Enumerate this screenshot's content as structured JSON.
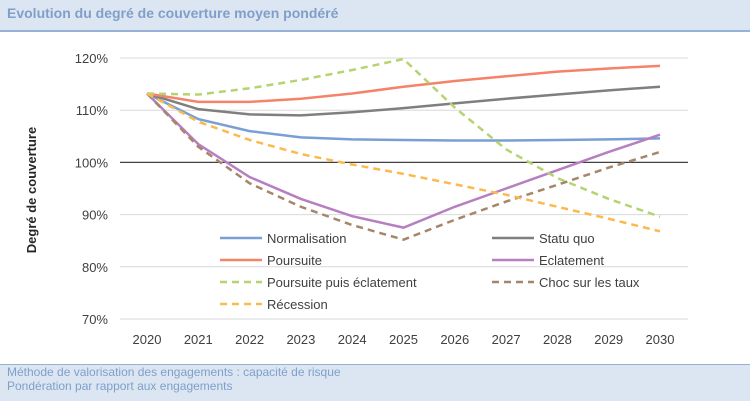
{
  "header": {
    "title": "Evolution du degré de couverture moyen pondéré"
  },
  "footer": {
    "line1": "Méthode de valorisation des engagements : capacité de risque",
    "line2": "Pondération par rapport aux engagements"
  },
  "chart_data": {
    "type": "line",
    "title": "",
    "xlabel": "",
    "ylabel": "Degré de couverture",
    "ylim": [
      70,
      120
    ],
    "yticks": [
      "70%",
      "80%",
      "90%",
      "100%",
      "110%",
      "120%"
    ],
    "categories": [
      "2020",
      "2021",
      "2022",
      "2023",
      "2024",
      "2025",
      "2026",
      "2027",
      "2028",
      "2029",
      "2030"
    ],
    "grid": true,
    "legend_placement": "bottom-center inside",
    "series": [
      {
        "name": "Normalisation",
        "color": "#7a9fd4",
        "dash": false,
        "values": [
          113.2,
          108.3,
          106,
          104.8,
          104.4,
          104.3,
          104.2,
          104.2,
          104.3,
          104.4,
          104.6
        ]
      },
      {
        "name": "Statu quo",
        "color": "#7f7f7f",
        "dash": false,
        "values": [
          113.2,
          110.2,
          109.2,
          109,
          109.6,
          110.4,
          111.3,
          112.2,
          113,
          113.8,
          114.5
        ]
      },
      {
        "name": "Poursuite",
        "color": "#f4836a",
        "dash": false,
        "values": [
          113.2,
          111.6,
          111.6,
          112.2,
          113.2,
          114.5,
          115.6,
          116.5,
          117.4,
          118,
          118.5
        ]
      },
      {
        "name": "Eclatement",
        "color": "#b77fc1",
        "dash": false,
        "values": [
          113.2,
          103.5,
          97.2,
          93,
          89.7,
          87.5,
          91.5,
          95,
          98.5,
          102,
          105.3
        ]
      },
      {
        "name": "Poursuite puis éclatement",
        "color": "#b5d36f",
        "dash": true,
        "values": [
          113.2,
          113,
          114.2,
          115.8,
          117.7,
          119.8,
          110.5,
          102.5,
          97,
          93,
          89.6
        ]
      },
      {
        "name": "Choc sur les taux",
        "color": "#a6866a",
        "dash": true,
        "values": [
          113.2,
          103,
          96,
          91.5,
          88,
          85.2,
          89,
          92.5,
          95.7,
          99,
          102
        ]
      },
      {
        "name": "Récession",
        "color": "#fcb94e",
        "dash": true,
        "values": [
          113.2,
          107.8,
          104.3,
          101.6,
          99.6,
          97.8,
          95.8,
          93.8,
          91.5,
          89.2,
          86.8
        ]
      }
    ]
  }
}
